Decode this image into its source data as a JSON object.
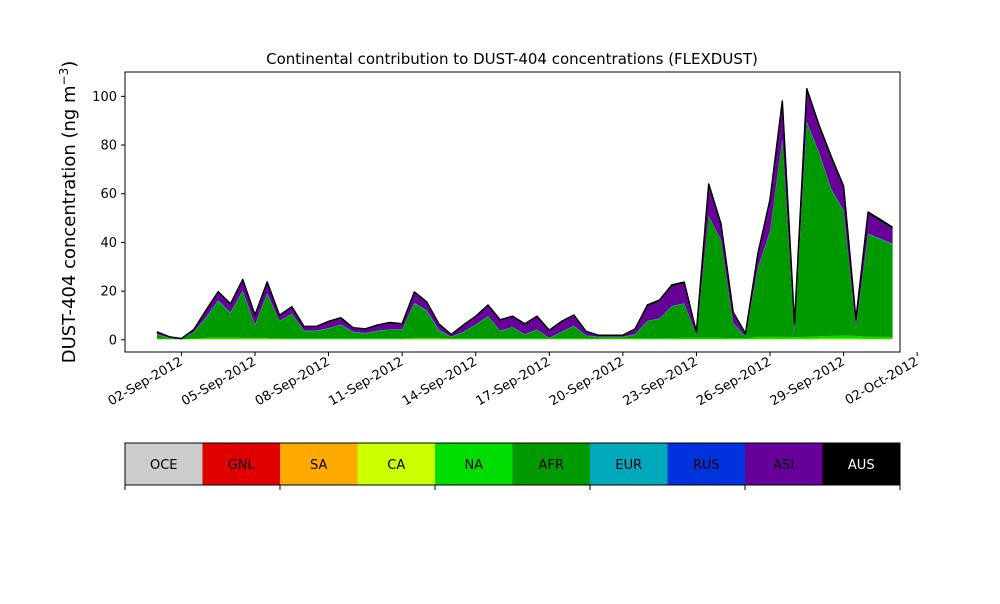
{
  "chart_data": {
    "type": "area",
    "stacked": true,
    "title": "Continental contribution to DUST-404 concentrations (FLEXDUST)",
    "ylabel_main": "DUST-404 concentration (ng m",
    "ylabel_sup": "−3",
    "ylabel_close": ")",
    "xlabel": "",
    "x_start": "2012-09-01",
    "x_end": "2012-10-01",
    "ylim": [
      -5,
      110
    ],
    "yticks": [
      0,
      20,
      40,
      60,
      80,
      100
    ],
    "xticks": [
      "02-Sep-2012",
      "05-Sep-2012",
      "08-Sep-2012",
      "11-Sep-2012",
      "14-Sep-2012",
      "17-Sep-2012",
      "20-Sep-2012",
      "23-Sep-2012",
      "26-Sep-2012",
      "29-Sep-2012",
      "02-Oct-2012"
    ],
    "grid": false,
    "x": [
      "2012-09-01 00:00",
      "2012-09-01 12:00",
      "2012-09-02 00:00",
      "2012-09-02 12:00",
      "2012-09-03 00:00",
      "2012-09-03 12:00",
      "2012-09-04 00:00",
      "2012-09-04 12:00",
      "2012-09-05 00:00",
      "2012-09-05 12:00",
      "2012-09-06 00:00",
      "2012-09-06 12:00",
      "2012-09-07 00:00",
      "2012-09-07 12:00",
      "2012-09-08 00:00",
      "2012-09-08 12:00",
      "2012-09-09 00:00",
      "2012-09-09 12:00",
      "2012-09-10 00:00",
      "2012-09-10 12:00",
      "2012-09-11 00:00",
      "2012-09-11 12:00",
      "2012-09-12 00:00",
      "2012-09-12 12:00",
      "2012-09-13 00:00",
      "2012-09-13 12:00",
      "2012-09-14 00:00",
      "2012-09-14 12:00",
      "2012-09-15 00:00",
      "2012-09-15 12:00",
      "2012-09-16 00:00",
      "2012-09-16 12:00",
      "2012-09-17 00:00",
      "2012-09-17 12:00",
      "2012-09-18 00:00",
      "2012-09-18 12:00",
      "2012-09-19 00:00",
      "2012-09-19 12:00",
      "2012-09-20 00:00",
      "2012-09-20 12:00",
      "2012-09-21 00:00",
      "2012-09-21 12:00",
      "2012-09-22 00:00",
      "2012-09-22 12:00",
      "2012-09-23 00:00",
      "2012-09-23 12:00",
      "2012-09-24 00:00",
      "2012-09-24 12:00",
      "2012-09-25 00:00",
      "2012-09-25 12:00",
      "2012-09-26 00:00",
      "2012-09-26 12:00",
      "2012-09-27 00:00",
      "2012-09-27 12:00",
      "2012-09-28 00:00",
      "2012-09-28 12:00",
      "2012-09-29 00:00",
      "2012-09-29 12:00",
      "2012-09-30 00:00",
      "2012-09-30 12:00",
      "2012-10-01 00:00"
    ],
    "series": [
      {
        "name": "OCE",
        "color": "#cccccc",
        "values": [
          0.1,
          0.1,
          0.1,
          0.1,
          0.1,
          0.1,
          0.1,
          0.1,
          0.1,
          0.1,
          0.1,
          0.1,
          0.1,
          0.1,
          0.1,
          0.1,
          0.1,
          0.1,
          0.1,
          0.1,
          0.1,
          0.1,
          0.1,
          0.1,
          0.1,
          0.1,
          0.1,
          0.1,
          0.1,
          0.1,
          0.1,
          0.1,
          0.1,
          0.1,
          0.1,
          0.1,
          0.1,
          0.1,
          0.1,
          0.1,
          0.1,
          0.1,
          0.1,
          0.1,
          0.1,
          0.1,
          0.1,
          0.1,
          0.1,
          0.1,
          0.1,
          0.1,
          0.1,
          0.1,
          0.1,
          0.1,
          0.1,
          0.1,
          0.1,
          0.1,
          0.1
        ]
      },
      {
        "name": "GNL",
        "color": "#e00000",
        "values": [
          0,
          0,
          0,
          0,
          0,
          0,
          0,
          0,
          0,
          0,
          0,
          0,
          0,
          0,
          0,
          0,
          0,
          0,
          0,
          0,
          0,
          0,
          0,
          0,
          0,
          0,
          0,
          0,
          0,
          0,
          0,
          0,
          0,
          0,
          0,
          0,
          0,
          0,
          0,
          0,
          0,
          0,
          0,
          0,
          0,
          0,
          0,
          0,
          0,
          0,
          0,
          0,
          0,
          0,
          0,
          0,
          0,
          0,
          0,
          0,
          0
        ]
      },
      {
        "name": "SA",
        "color": "#ffaa00",
        "values": [
          0,
          0,
          0,
          0,
          0,
          0,
          0,
          0,
          0,
          0,
          0,
          0,
          0,
          0,
          0,
          0,
          0,
          0,
          0,
          0,
          0,
          0,
          0,
          0,
          0,
          0,
          0,
          0,
          0,
          0,
          0,
          0,
          0,
          0,
          0,
          0,
          0,
          0,
          0,
          0,
          0,
          0,
          0,
          0,
          0,
          0,
          0,
          0,
          0,
          0,
          0,
          0,
          0,
          0,
          0,
          0,
          0,
          0,
          0,
          0,
          0
        ]
      },
      {
        "name": "CA",
        "color": "#ccff00",
        "values": [
          0.2,
          0.1,
          0.1,
          0.2,
          0.3,
          0.3,
          0.3,
          0.3,
          0.3,
          0.3,
          0.2,
          0.2,
          0.2,
          0.2,
          0.2,
          0.2,
          0.2,
          0.2,
          0.2,
          0.2,
          0.2,
          0.3,
          0.3,
          0.3,
          0.2,
          0.2,
          0.2,
          0.2,
          0.2,
          0.2,
          0.2,
          0.2,
          0.2,
          0.2,
          0.2,
          0.2,
          0.2,
          0.2,
          0.2,
          0.2,
          0.2,
          0.2,
          0.2,
          0.2,
          0.2,
          0.2,
          0.2,
          0.2,
          0.2,
          0.3,
          0.3,
          0.3,
          0.3,
          0.3,
          0.4,
          0.4,
          0.4,
          0.4,
          0.3,
          0.3,
          0.3
        ]
      },
      {
        "name": "NA",
        "color": "#00dd00",
        "values": [
          0.3,
          0.2,
          0.1,
          0.2,
          0.4,
          0.5,
          0.5,
          0.4,
          0.4,
          0.4,
          0.3,
          0.3,
          0.3,
          0.3,
          0.3,
          0.3,
          0.3,
          0.3,
          0.3,
          0.3,
          0.3,
          0.4,
          0.4,
          0.4,
          0.3,
          0.3,
          0.3,
          0.3,
          0.3,
          0.3,
          0.3,
          0.3,
          0.3,
          0.3,
          0.3,
          0.3,
          0.3,
          0.3,
          0.3,
          0.3,
          0.3,
          0.3,
          0.4,
          0.5,
          0.5,
          0.5,
          0.5,
          0.4,
          0.4,
          0.8,
          0.8,
          0.8,
          0.7,
          0.8,
          1.0,
          1.1,
          1.2,
          1.1,
          0.9,
          0.8,
          0.7
        ]
      },
      {
        "name": "AFR",
        "color": "#009900",
        "values": [
          1.5,
          0.3,
          0.1,
          2.5,
          8.0,
          15.0,
          10.0,
          19.0,
          5.0,
          18.0,
          7.0,
          10.0,
          3.0,
          3.0,
          4.0,
          5.5,
          2.5,
          2.0,
          3.0,
          3.5,
          3.5,
          14.0,
          11.0,
          3.0,
          0.5,
          2.5,
          5.5,
          9.0,
          3.0,
          4.5,
          1.5,
          3.5,
          0.0,
          2.5,
          5.0,
          1.0,
          0.5,
          0.5,
          0.5,
          1.5,
          7.0,
          8.0,
          13.0,
          14.0,
          1.0,
          50.0,
          40.0,
          6.0,
          0.5,
          28.0,
          43.0,
          81.0,
          2.0,
          88.0,
          75.0,
          60.0,
          51.0,
          3.0,
          42.0,
          40.0,
          38.0
        ]
      },
      {
        "name": "EUR",
        "color": "#00aabb",
        "values": [
          0.1,
          0.1,
          0.0,
          0.1,
          0.2,
          0.2,
          0.2,
          0.2,
          0.2,
          0.2,
          0.1,
          0.1,
          0.1,
          0.1,
          0.1,
          0.1,
          0.1,
          0.1,
          0.1,
          0.1,
          0.1,
          0.2,
          0.2,
          0.2,
          0.1,
          0.1,
          0.1,
          0.1,
          0.1,
          0.1,
          0.1,
          0.1,
          0.1,
          0.1,
          0.1,
          0.1,
          0.1,
          0.1,
          0.1,
          0.1,
          0.1,
          0.1,
          0.1,
          0.1,
          0.1,
          0.1,
          0.1,
          0.1,
          0.1,
          0.2,
          0.2,
          0.2,
          0.1,
          0.2,
          0.2,
          0.2,
          0.2,
          0.2,
          0.2,
          0.2,
          0.2
        ]
      },
      {
        "name": "RUS",
        "color": "#0033dd",
        "values": [
          0.1,
          0.1,
          0.0,
          0.1,
          0.2,
          0.2,
          0.2,
          0.2,
          0.2,
          0.2,
          0.1,
          0.1,
          0.1,
          0.1,
          0.1,
          0.1,
          0.1,
          0.1,
          0.1,
          0.1,
          0.1,
          0.2,
          0.2,
          0.2,
          0.1,
          0.1,
          0.1,
          0.1,
          0.1,
          0.1,
          0.1,
          0.1,
          0.1,
          0.1,
          0.1,
          0.1,
          0.1,
          0.1,
          0.1,
          0.1,
          0.1,
          0.1,
          0.1,
          0.1,
          0.1,
          0.1,
          0.1,
          0.1,
          0.1,
          0.2,
          0.2,
          0.2,
          0.1,
          0.2,
          0.2,
          0.2,
          0.2,
          0.2,
          0.2,
          0.2,
          0.2
        ]
      },
      {
        "name": "ASI",
        "color": "#660099",
        "values": [
          0.8,
          0.3,
          0.1,
          0.8,
          2.5,
          3.0,
          3.0,
          4.0,
          3.5,
          4.0,
          2.0,
          2.5,
          1.5,
          1.5,
          2.5,
          2.5,
          1.5,
          1.5,
          2.0,
          2.5,
          2.0,
          4.0,
          3.0,
          2.0,
          0.8,
          2.5,
          3.0,
          4.0,
          4.0,
          4.0,
          4.0,
          5.0,
          3.0,
          4.0,
          4.0,
          1.5,
          0.5,
          0.5,
          0.5,
          2.0,
          6.0,
          7.0,
          8.0,
          8.0,
          1.0,
          12.0,
          6.0,
          4.0,
          1.0,
          5.0,
          12.0,
          14.0,
          3.0,
          12.0,
          10.0,
          12.0,
          9.0,
          3.0,
          8.0,
          7.0,
          6.0
        ]
      },
      {
        "name": "AUS",
        "color": "#000000",
        "values": [
          0.2,
          0.1,
          0.0,
          0.2,
          0.4,
          0.5,
          0.5,
          0.6,
          0.5,
          0.6,
          0.3,
          0.3,
          0.2,
          0.2,
          0.3,
          0.3,
          0.2,
          0.2,
          0.3,
          0.3,
          0.3,
          0.5,
          0.4,
          0.3,
          0.1,
          0.3,
          0.4,
          0.5,
          0.4,
          0.4,
          0.3,
          0.4,
          0.2,
          0.3,
          0.4,
          0.2,
          0.1,
          0.1,
          0.1,
          0.2,
          0.5,
          0.6,
          0.7,
          0.7,
          0.2,
          1.0,
          0.6,
          0.4,
          0.2,
          0.6,
          1.0,
          1.5,
          0.3,
          1.5,
          1.2,
          1.2,
          1.0,
          0.4,
          0.8,
          0.8,
          0.7
        ]
      }
    ]
  },
  "colorbar": {
    "labels": [
      "OCE",
      "GNL",
      "SA",
      "CA",
      "NA",
      "AFR",
      "EUR",
      "RUS",
      "ASI",
      "AUS"
    ],
    "colors": [
      "#cccccc",
      "#e00000",
      "#ffaa00",
      "#ccff00",
      "#00dd00",
      "#009900",
      "#00aabb",
      "#0033dd",
      "#660099",
      "#000000"
    ],
    "text_colors": [
      "#000000",
      "#000000",
      "#000000",
      "#000000",
      "#000000",
      "#000000",
      "#000000",
      "#000000",
      "#000000",
      "#ffffff"
    ]
  }
}
